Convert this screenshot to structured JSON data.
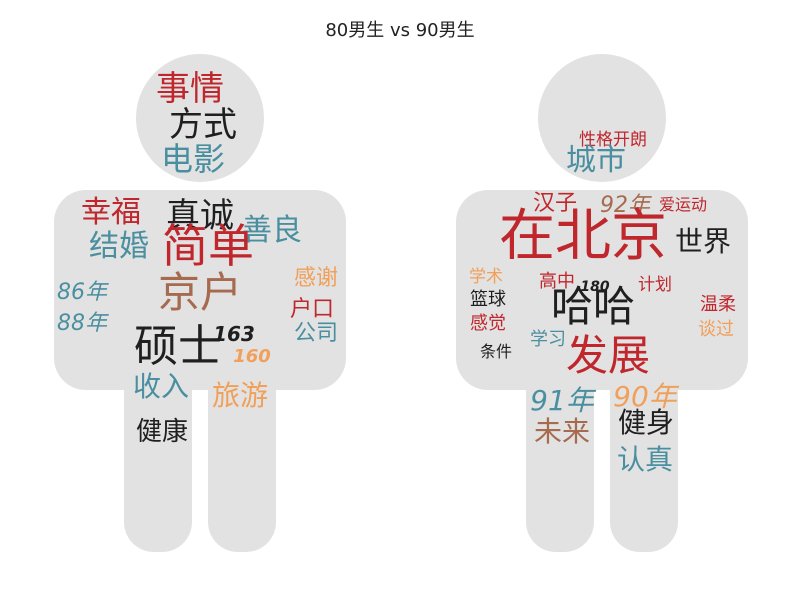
{
  "title": "80男生 vs 90男生",
  "colors": {
    "silhouette": "#e2e2e2",
    "dark": "#1f1f1f",
    "red": "#c0272d",
    "teal": "#4a8fa0",
    "brown": "#a66a4e",
    "orange": "#f0a05a"
  },
  "chart_data": [
    {
      "type": "wordcloud",
      "name": "80男生",
      "words": [
        {
          "text": "事情",
          "color": "red"
        },
        {
          "text": "方式",
          "color": "dark"
        },
        {
          "text": "电影",
          "color": "teal"
        },
        {
          "text": "幸福",
          "color": "red"
        },
        {
          "text": "真诚",
          "color": "dark"
        },
        {
          "text": "善良",
          "color": "teal"
        },
        {
          "text": "结婚",
          "color": "teal"
        },
        {
          "text": "简单",
          "color": "red"
        },
        {
          "text": "感谢",
          "color": "orange"
        },
        {
          "text": "86年",
          "color": "teal"
        },
        {
          "text": "户口",
          "color": "red"
        },
        {
          "text": "京户",
          "color": "brown"
        },
        {
          "text": "公司",
          "color": "teal"
        },
        {
          "text": "88年",
          "color": "teal"
        },
        {
          "text": "163",
          "color": "dark"
        },
        {
          "text": "硕士",
          "color": "dark"
        },
        {
          "text": "160",
          "color": "orange"
        },
        {
          "text": "收入",
          "color": "teal"
        },
        {
          "text": "旅游",
          "color": "orange"
        },
        {
          "text": "健康",
          "color": "dark"
        }
      ]
    },
    {
      "type": "wordcloud",
      "name": "90男生",
      "words": [
        {
          "text": "性格开朗",
          "color": "red"
        },
        {
          "text": "城市",
          "color": "teal"
        },
        {
          "text": "汉子",
          "color": "red"
        },
        {
          "text": "92年",
          "color": "brown"
        },
        {
          "text": "爱运动",
          "color": "red"
        },
        {
          "text": "在北京",
          "color": "red"
        },
        {
          "text": "世界",
          "color": "dark"
        },
        {
          "text": "学术",
          "color": "orange"
        },
        {
          "text": "高中",
          "color": "red"
        },
        {
          "text": "180",
          "color": "dark"
        },
        {
          "text": "计划",
          "color": "red"
        },
        {
          "text": "篮球",
          "color": "dark"
        },
        {
          "text": "哈哈",
          "color": "dark"
        },
        {
          "text": "温柔",
          "color": "red"
        },
        {
          "text": "感觉",
          "color": "red"
        },
        {
          "text": "谈过",
          "color": "orange"
        },
        {
          "text": "学习",
          "color": "teal"
        },
        {
          "text": "条件",
          "color": "dark"
        },
        {
          "text": "发展",
          "color": "red"
        },
        {
          "text": "91年",
          "color": "teal"
        },
        {
          "text": "90年",
          "color": "orange"
        },
        {
          "text": "未来",
          "color": "brown"
        },
        {
          "text": "健身",
          "color": "dark"
        },
        {
          "text": "认真",
          "color": "teal"
        }
      ]
    }
  ]
}
